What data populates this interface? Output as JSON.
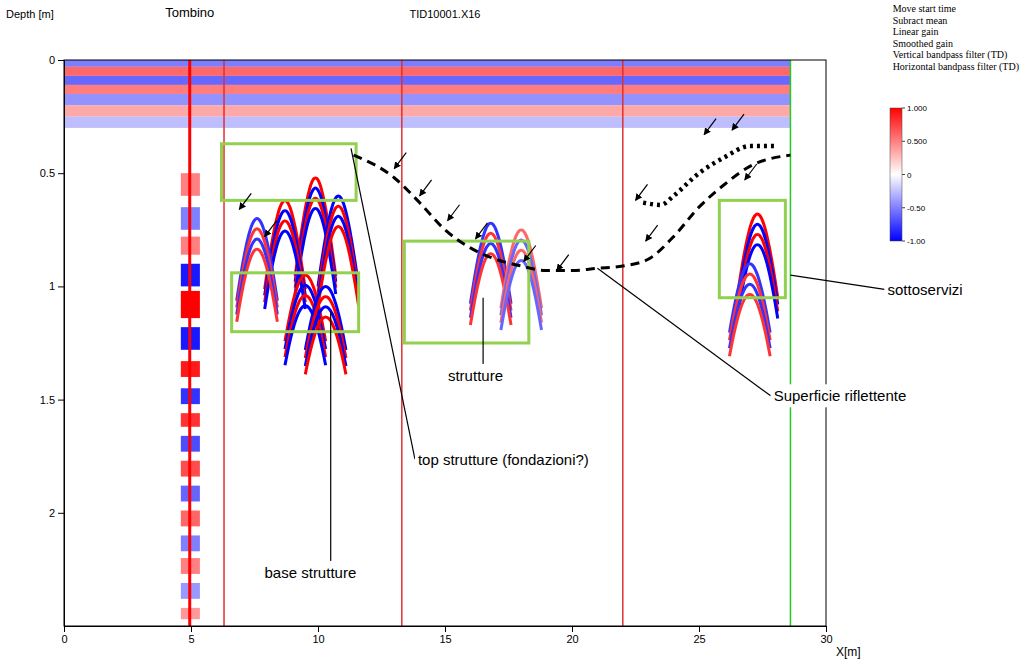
{
  "chart_data": {
    "type": "radargram",
    "title": "TID10001.X16",
    "x_label": "X[m]",
    "y_label": "Depth [m]",
    "xlim": [
      0,
      30
    ],
    "xticks": [
      0,
      5,
      10,
      15,
      20,
      25,
      30
    ],
    "ylim": [
      0,
      2.5
    ],
    "yticks": [
      0,
      0.5,
      1,
      1.5,
      2
    ],
    "processing": [
      "Move start time",
      "Subract mean",
      "Linear gain",
      "Smoothed gain",
      "Vertical bandpass filter (TD)",
      "Horizontal bandpass filter (TD)"
    ],
    "colorbar": {
      "range": [
        -1,
        1
      ],
      "ticks": [
        {
          "value": 1,
          "label": "1.000"
        },
        {
          "value": 0.5,
          "label": "0.500"
        },
        0,
        {
          "value": -0.5,
          "label": "-0.50"
        },
        {
          "value": -1,
          "label": "-1.00"
        }
      ]
    },
    "section_end": 28.6,
    "markers": [
      6.3,
      13.3,
      22.0
    ],
    "surface_bands": [
      {
        "depth0": 0.0,
        "depth1": 0.03,
        "amplitude": -0.6
      },
      {
        "depth0": 0.03,
        "depth1": 0.07,
        "amplitude": 0.7
      },
      {
        "depth0": 0.07,
        "depth1": 0.11,
        "amplitude": -0.7
      },
      {
        "depth0": 0.11,
        "depth1": 0.15,
        "amplitude": 0.6
      },
      {
        "depth0": 0.15,
        "depth1": 0.2,
        "amplitude": -0.5
      },
      {
        "depth0": 0.2,
        "depth1": 0.25,
        "amplitude": 0.4
      },
      {
        "depth0": 0.25,
        "depth1": 0.3,
        "amplitude": -0.3
      }
    ],
    "tombino": {
      "label": "Tombino",
      "x0": 4.6,
      "x1": 5.35,
      "center": 4.95,
      "bands": [
        {
          "depth0": 0.5,
          "depth1": 0.6,
          "amplitude": 0.5
        },
        {
          "depth0": 0.65,
          "depth1": 0.75,
          "amplitude": -0.5
        },
        {
          "depth0": 0.78,
          "depth1": 0.86,
          "amplitude": 0.5
        },
        {
          "depth0": 0.9,
          "depth1": 1.0,
          "amplitude": -0.9
        },
        {
          "depth0": 1.02,
          "depth1": 1.14,
          "amplitude": 1.0
        },
        {
          "depth0": 1.18,
          "depth1": 1.28,
          "amplitude": -0.9
        },
        {
          "depth0": 1.33,
          "depth1": 1.4,
          "amplitude": 0.9
        },
        {
          "depth0": 1.45,
          "depth1": 1.52,
          "amplitude": -0.8
        },
        {
          "depth0": 1.56,
          "depth1": 1.62,
          "amplitude": 0.8
        },
        {
          "depth0": 1.66,
          "depth1": 1.73,
          "amplitude": -0.7
        },
        {
          "depth0": 1.77,
          "depth1": 1.84,
          "amplitude": 0.7
        },
        {
          "depth0": 1.88,
          "depth1": 1.95,
          "amplitude": -0.6
        },
        {
          "depth0": 1.99,
          "depth1": 2.06,
          "amplitude": 0.6
        },
        {
          "depth0": 2.1,
          "depth1": 2.17,
          "amplitude": -0.5
        },
        {
          "depth0": 2.2,
          "depth1": 2.27,
          "amplitude": 0.5
        },
        {
          "depth0": 2.31,
          "depth1": 2.38,
          "amplitude": -0.4
        },
        {
          "depth0": 2.42,
          "depth1": 2.47,
          "amplitude": 0.4
        }
      ]
    },
    "hyperbolas": [
      {
        "x": 9.9,
        "depth": 0.52,
        "amplitude": 1.0
      },
      {
        "x": 10.8,
        "depth": 0.6,
        "amplitude": -1.0
      },
      {
        "x": 8.7,
        "depth": 0.62,
        "amplitude": 1.0
      },
      {
        "x": 7.6,
        "depth": 0.7,
        "amplitude": -0.8
      },
      {
        "x": 9.5,
        "depth": 0.95,
        "amplitude": 1.0
      },
      {
        "x": 10.3,
        "depth": 1.0,
        "amplitude": -1.0
      },
      {
        "x": 16.8,
        "depth": 0.72,
        "amplitude": -0.8
      },
      {
        "x": 18.0,
        "depth": 0.75,
        "amplitude": 0.6
      },
      {
        "x": 27.3,
        "depth": 0.68,
        "amplitude": 1.0
      },
      {
        "x": 27.0,
        "depth": 0.9,
        "amplitude": -0.8
      }
    ],
    "boxes": [
      {
        "x0": 6.2,
        "x1": 11.5,
        "depth0": 0.37,
        "depth1": 0.62
      },
      {
        "x0": 6.6,
        "x1": 11.6,
        "depth0": 0.94,
        "depth1": 1.2
      },
      {
        "x0": 13.4,
        "x1": 18.3,
        "depth0": 0.8,
        "depth1": 1.25
      },
      {
        "x0": 25.8,
        "x1": 28.4,
        "depth0": 0.62,
        "depth1": 1.05
      }
    ],
    "reflectors": [
      {
        "line_style": "dashed",
        "x": [
          11.4,
          13,
          14,
          15,
          16,
          17,
          18,
          19,
          20,
          21,
          22,
          23,
          24,
          25,
          26,
          27,
          28.6
        ],
        "depth": [
          0.42,
          0.52,
          0.63,
          0.75,
          0.83,
          0.88,
          0.91,
          0.93,
          0.93,
          0.92,
          0.91,
          0.88,
          0.78,
          0.65,
          0.55,
          0.47,
          0.42
        ]
      },
      {
        "line_style": "dotted",
        "x": [
          22.8,
          23.5,
          24,
          25,
          26,
          27,
          28
        ],
        "depth": [
          0.63,
          0.64,
          0.6,
          0.5,
          0.43,
          0.38,
          0.38
        ]
      }
    ],
    "pointers": {
      "x": [
        6.9,
        7.9,
        13.0,
        14.0,
        15.1,
        16.2,
        18.1,
        19.4,
        22.5,
        22.9,
        25.2,
        26.3,
        26.8
      ],
      "depth": [
        0.66,
        0.78,
        0.48,
        0.6,
        0.71,
        0.79,
        0.89,
        0.93,
        0.62,
        0.8,
        0.33,
        0.31,
        0.53
      ]
    },
    "annotations": [
      {
        "text": "sottoservizi",
        "x": 33.9,
        "depth": 1.02,
        "target_x": 28.6,
        "target_depth": 0.95
      },
      {
        "text": "Superficie riflettente",
        "x": 30.55,
        "depth": 1.49,
        "target_x": 21.0,
        "target_depth": 0.92
      },
      {
        "text": "strutture",
        "x": 16.2,
        "depth": 1.4,
        "target_x": 16.5,
        "target_depth": 1.05
      },
      {
        "text": "top strutture (fondazioni?)",
        "x": 17.3,
        "depth": 1.77,
        "target_x": 11.3,
        "target_depth": 0.39
      },
      {
        "text": "base strutture",
        "x": 9.7,
        "depth": 2.27,
        "target_x": 10.5,
        "target_depth": 1.11
      }
    ]
  }
}
